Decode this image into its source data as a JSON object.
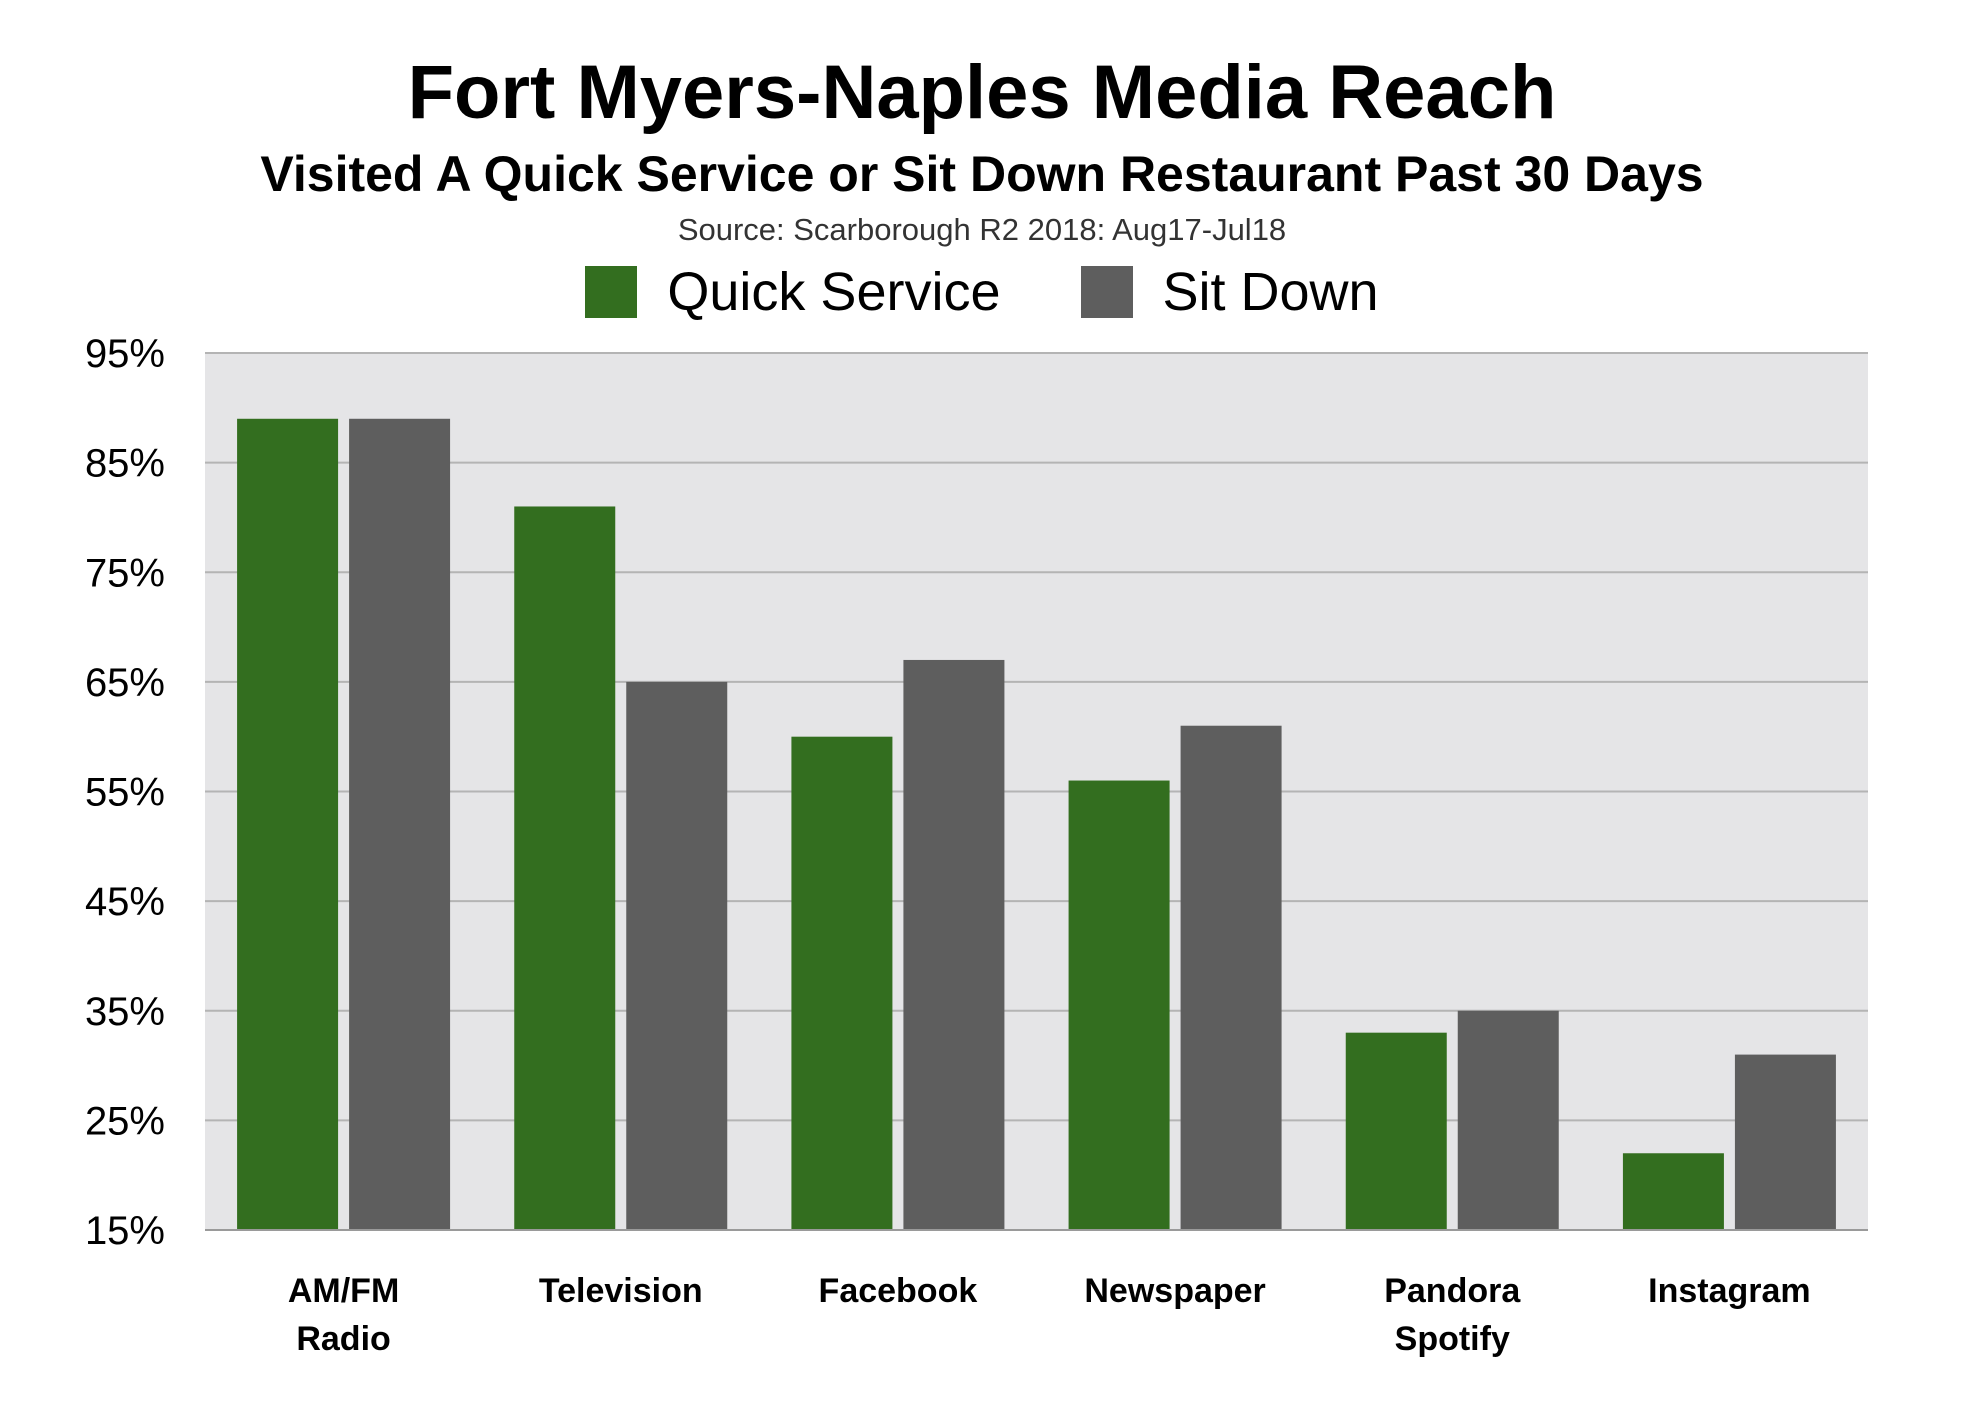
{
  "chart_data": {
    "type": "bar",
    "title": "Fort Myers-Naples Media Reach",
    "subtitle": "Visited A Quick Service or Sit Down Restaurant Past 30 Days",
    "source": "Source: Scarborough R2 2018: Aug17-Jul18",
    "categories": [
      [
        "AM/FM",
        "Radio"
      ],
      [
        "Television"
      ],
      [
        "Facebook"
      ],
      [
        "Newspaper"
      ],
      [
        "Pandora",
        "Spotify"
      ],
      [
        "Instagram"
      ]
    ],
    "series": [
      {
        "name": "Quick Service",
        "color": "#336e1f",
        "values": [
          89,
          81,
          60,
          56,
          33,
          22
        ]
      },
      {
        "name": "Sit Down",
        "color": "#5e5e5e",
        "values": [
          89,
          65,
          67,
          61,
          35,
          31
        ]
      }
    ],
    "ylim": [
      15,
      95
    ],
    "yticks": [
      95,
      85,
      75,
      65,
      55,
      45,
      35,
      25,
      15
    ],
    "ytick_suffix": "%",
    "grid": true,
    "plot_background": "#e5e5e7",
    "legend_position": "top-center"
  }
}
